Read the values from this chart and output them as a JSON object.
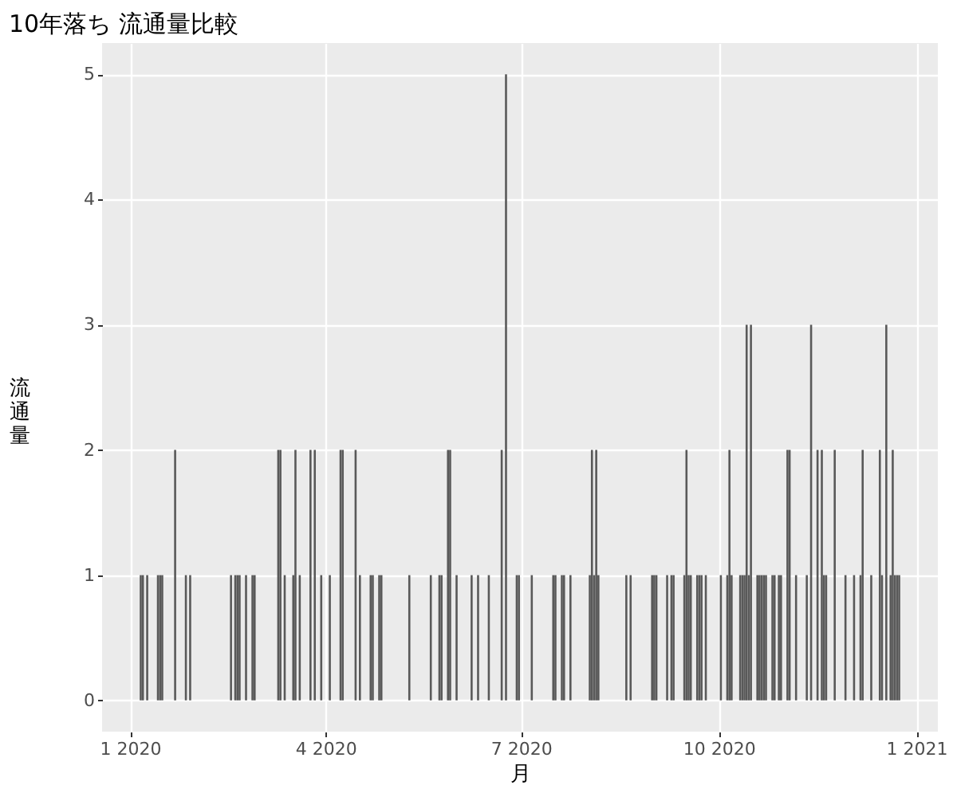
{
  "chart_data": {
    "type": "bar",
    "title": "10年落ち 流通量比較",
    "xlabel": "月",
    "ylabel": "流通量",
    "x": [
      "2020-01-06",
      "2020-01-07",
      "2020-01-09",
      "2020-01-14",
      "2020-01-15",
      "2020-01-16",
      "2020-01-22",
      "2020-01-27",
      "2020-01-29",
      "2020-02-17",
      "2020-02-19",
      "2020-02-20",
      "2020-02-21",
      "2020-02-24",
      "2020-02-27",
      "2020-02-28",
      "2020-03-10",
      "2020-03-11",
      "2020-03-13",
      "2020-03-17",
      "2020-03-18",
      "2020-03-20",
      "2020-03-25",
      "2020-03-27",
      "2020-03-30",
      "2020-04-03",
      "2020-04-08",
      "2020-04-09",
      "2020-04-15",
      "2020-04-17",
      "2020-04-22",
      "2020-04-23",
      "2020-04-26",
      "2020-04-27",
      "2020-05-10",
      "2020-05-20",
      "2020-05-24",
      "2020-05-25",
      "2020-05-28",
      "2020-05-29",
      "2020-06-01",
      "2020-06-08",
      "2020-06-11",
      "2020-06-16",
      "2020-06-22",
      "2020-06-24",
      "2020-06-29",
      "2020-06-30",
      "2020-07-06",
      "2020-07-16",
      "2020-07-17",
      "2020-07-20",
      "2020-07-21",
      "2020-07-24",
      "2020-08-02",
      "2020-08-03",
      "2020-08-04",
      "2020-08-05",
      "2020-08-06",
      "2020-08-19",
      "2020-08-21",
      "2020-08-31",
      "2020-09-01",
      "2020-09-02",
      "2020-09-07",
      "2020-09-09",
      "2020-09-10",
      "2020-09-15",
      "2020-09-16",
      "2020-09-17",
      "2020-09-18",
      "2020-09-21",
      "2020-09-22",
      "2020-09-23",
      "2020-09-25",
      "2020-10-02",
      "2020-10-05",
      "2020-10-06",
      "2020-10-07",
      "2020-10-11",
      "2020-10-12",
      "2020-10-13",
      "2020-10-14",
      "2020-10-15",
      "2020-10-16",
      "2020-10-19",
      "2020-10-20",
      "2020-10-21",
      "2020-10-22",
      "2020-10-23",
      "2020-10-26",
      "2020-10-27",
      "2020-10-29",
      "2020-10-30",
      "2020-11-02",
      "2020-11-03",
      "2020-11-06",
      "2020-11-11",
      "2020-11-13",
      "2020-11-16",
      "2020-11-18",
      "2020-11-19",
      "2020-11-20",
      "2020-11-24",
      "2020-11-29",
      "2020-12-03",
      "2020-12-06",
      "2020-12-07",
      "2020-12-11",
      "2020-12-15",
      "2020-12-16",
      "2020-12-18",
      "2020-12-20",
      "2020-12-21",
      "2020-12-22",
      "2020-12-23",
      "2020-12-24"
    ],
    "values": [
      1,
      1,
      1,
      1,
      1,
      1,
      2,
      1,
      1,
      1,
      1,
      1,
      1,
      1,
      1,
      1,
      2,
      2,
      1,
      1,
      2,
      1,
      2,
      2,
      1,
      1,
      2,
      2,
      2,
      1,
      1,
      1,
      1,
      1,
      1,
      1,
      1,
      1,
      2,
      2,
      1,
      1,
      1,
      1,
      2,
      5,
      1,
      1,
      1,
      1,
      1,
      1,
      1,
      1,
      1,
      2,
      1,
      2,
      1,
      1,
      1,
      1,
      1,
      1,
      1,
      1,
      1,
      1,
      2,
      1,
      1,
      1,
      1,
      1,
      1,
      1,
      1,
      2,
      1,
      1,
      1,
      1,
      3,
      1,
      3,
      1,
      1,
      1,
      1,
      1,
      1,
      1,
      1,
      1,
      2,
      2,
      1,
      1,
      3,
      2,
      2,
      1,
      1,
      2,
      1,
      1,
      1,
      2,
      1,
      2,
      1,
      3,
      1,
      2,
      1,
      1,
      1
    ],
    "color": "#595959",
    "xlim": [
      "2019-12-19",
      "2021-01-11"
    ],
    "xticks": [
      {
        "value": "2020-01-01",
        "label": "1 2020"
      },
      {
        "value": "2020-04-01",
        "label": "4 2020"
      },
      {
        "value": "2020-07-01",
        "label": "7 2020"
      },
      {
        "value": "2020-10-01",
        "label": "10 2020"
      },
      {
        "value": "2021-01-01",
        "label": "1 2021"
      }
    ],
    "ylim": [
      -0.25,
      5.25
    ],
    "yticks": [
      0,
      1,
      2,
      3,
      4,
      5
    ],
    "grid": true
  }
}
